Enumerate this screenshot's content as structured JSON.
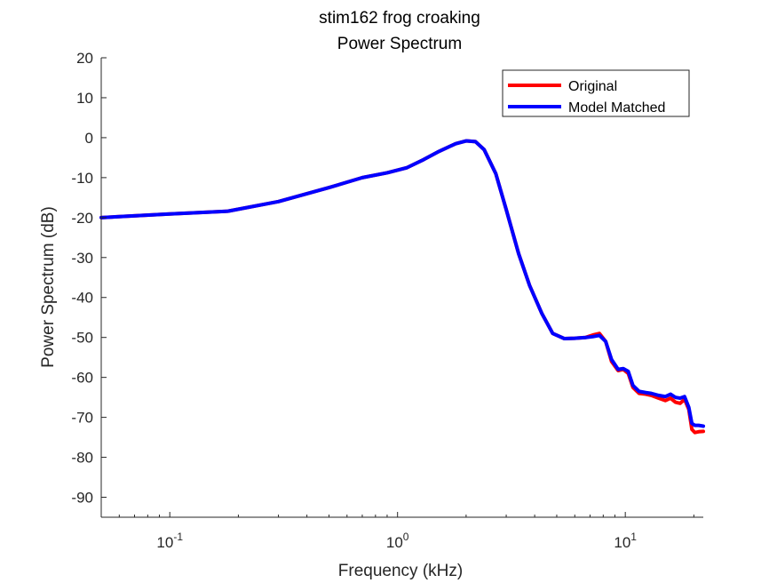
{
  "chart_data": {
    "type": "line",
    "title": "stim162 frog croaking",
    "subtitle": "Power Spectrum",
    "xlabel": "Frequency (kHz)",
    "ylabel": "Power Spectrum (dB)",
    "xscale": "log",
    "xlim": [
      0.05,
      22
    ],
    "ylim": [
      -95,
      20
    ],
    "yticks": [
      20,
      10,
      0,
      -10,
      -20,
      -30,
      -40,
      -50,
      -60,
      -70,
      -80,
      -90
    ],
    "xticks": [
      {
        "value": 0.1,
        "base": "10",
        "exp": "-1"
      },
      {
        "value": 1,
        "base": "10",
        "exp": "0"
      },
      {
        "value": 10,
        "base": "10",
        "exp": "1"
      }
    ],
    "grid": false,
    "legend_position": "top-right",
    "series": [
      {
        "name": "Original",
        "color": "#ff0000",
        "x": [
          0.05,
          0.1,
          0.18,
          0.3,
          0.5,
          0.7,
          0.9,
          1.1,
          1.3,
          1.5,
          1.8,
          2.0,
          2.2,
          2.4,
          2.7,
          3.0,
          3.4,
          3.8,
          4.3,
          4.8,
          5.4,
          6.0,
          6.7,
          7.2,
          7.7,
          8.2,
          8.7,
          9.3,
          9.8,
          10.3,
          10.8,
          11.5,
          12.3,
          13.0,
          14.0,
          15.0,
          15.8,
          16.6,
          17.4,
          18.2,
          19.0,
          19.6,
          20.2,
          21.0,
          22.0
        ],
        "y": [
          -20,
          -19.1,
          -18.4,
          -16,
          -12.5,
          -10,
          -8.8,
          -7.5,
          -5.5,
          -3.6,
          -1.5,
          -0.8,
          -1,
          -3,
          -9,
          -18,
          -29,
          -37,
          -44,
          -49,
          -50.3,
          -50.2,
          -50,
          -49.4,
          -49,
          -51,
          -56,
          -58.3,
          -58,
          -59,
          -62.5,
          -64,
          -64.2,
          -64.5,
          -65.2,
          -65.8,
          -65.2,
          -66.2,
          -66.5,
          -65.5,
          -68,
          -73,
          -73.8,
          -73.6,
          -73.5
        ]
      },
      {
        "name": "Model Matched",
        "color": "#0000ff",
        "x": [
          0.05,
          0.1,
          0.18,
          0.3,
          0.5,
          0.7,
          0.9,
          1.1,
          1.3,
          1.5,
          1.8,
          2.0,
          2.2,
          2.4,
          2.7,
          3.0,
          3.4,
          3.8,
          4.3,
          4.8,
          5.4,
          6.0,
          6.7,
          7.2,
          7.7,
          8.2,
          8.7,
          9.3,
          9.8,
          10.3,
          10.8,
          11.5,
          12.3,
          13.0,
          14.0,
          15.0,
          15.8,
          16.6,
          17.4,
          18.2,
          19.0,
          19.6,
          20.2,
          21.0,
          22.0
        ],
        "y": [
          -20,
          -19.1,
          -18.4,
          -16,
          -12.5,
          -10,
          -8.8,
          -7.5,
          -5.5,
          -3.6,
          -1.5,
          -0.8,
          -1,
          -3,
          -9,
          -18,
          -29,
          -37,
          -44,
          -49,
          -50.3,
          -50.2,
          -50,
          -49.8,
          -49.5,
          -51,
          -55.5,
          -58,
          -57.8,
          -58.5,
          -62,
          -63.5,
          -63.8,
          -64,
          -64.5,
          -64.8,
          -64.2,
          -65,
          -65.2,
          -64.8,
          -67.5,
          -71.5,
          -72,
          -72,
          -72.2
        ]
      }
    ]
  }
}
